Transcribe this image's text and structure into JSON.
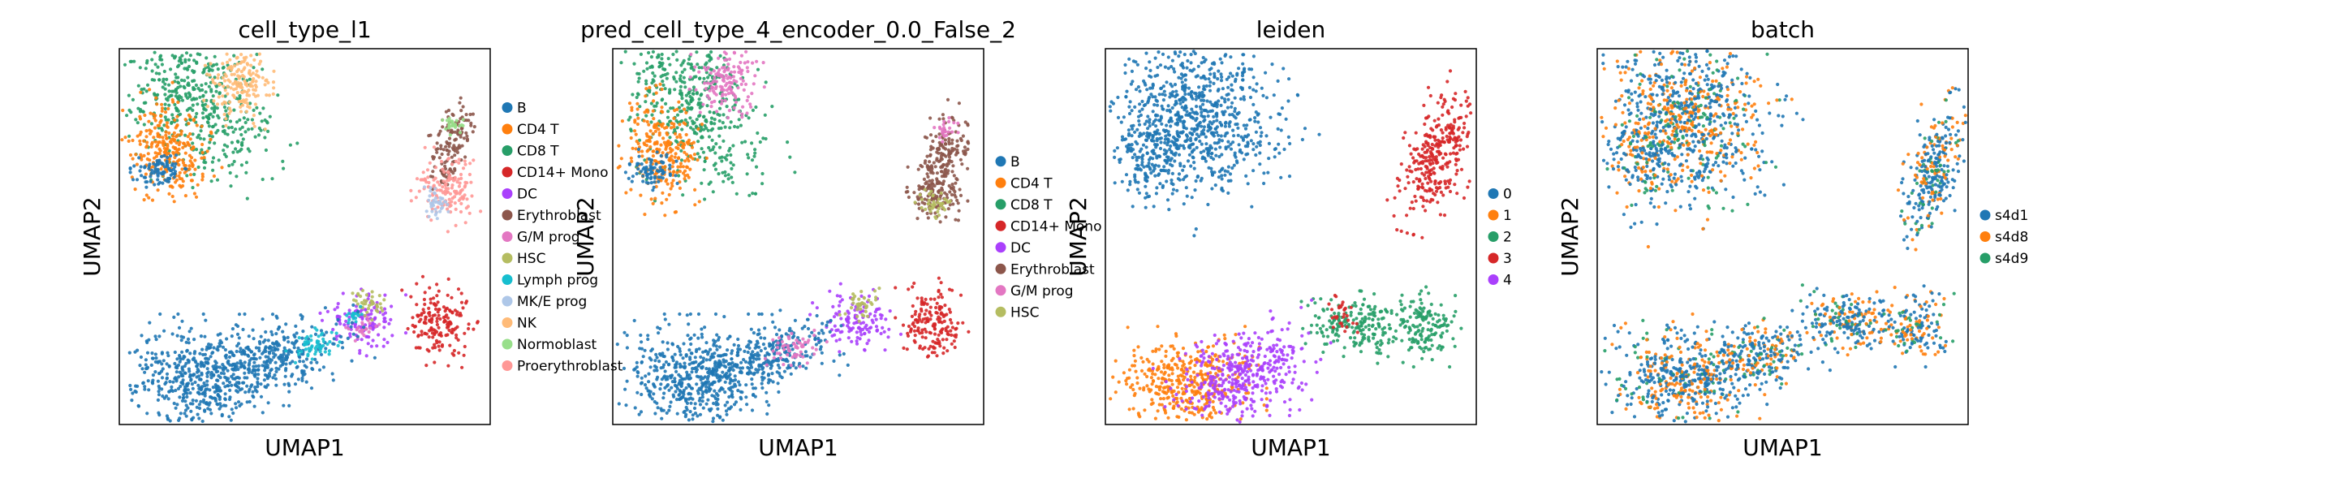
{
  "colors": {
    "B": "#1f77b4",
    "CD4 T": "#ff7f0e",
    "CD8 T": "#279e68",
    "CD14+ Mono": "#d62728",
    "DC": "#aa40fc",
    "Erythroblast": "#8c564b",
    "G/M prog": "#e377c2",
    "HSC": "#b5bd61",
    "Lymph prog": "#17becf",
    "MK/E prog": "#aec7e8",
    "NK": "#ffbb78",
    "Normoblast": "#98df8a",
    "Proerythroblast": "#ff9896"
  },
  "chart_data": [
    {
      "type": "scatter",
      "title": "cell_type_l1",
      "xlabel": "UMAP1",
      "ylabel": "UMAP2",
      "grid": false,
      "ticks": false,
      "legend_position": "right",
      "legend": [
        "B",
        "CD4 T",
        "CD8 T",
        "CD14+ Mono",
        "DC",
        "Erythroblast",
        "G/M prog",
        "HSC",
        "Lymph prog",
        "MK/E prog",
        "NK",
        "Normoblast",
        "Proerythroblast"
      ],
      "legend_colors": [
        "#1f77b4",
        "#ff7f0e",
        "#279e68",
        "#d62728",
        "#aa40fc",
        "#8c564b",
        "#e377c2",
        "#b5bd61",
        "#17becf",
        "#aec7e8",
        "#ffbb78",
        "#98df8a",
        "#ff9896"
      ]
    },
    {
      "type": "scatter",
      "title": "pred_cell_type_4_encoder_0.0_False_2",
      "xlabel": "UMAP1",
      "ylabel": "UMAP2",
      "grid": false,
      "ticks": false,
      "legend_position": "right",
      "legend": [
        "B",
        "CD4 T",
        "CD8 T",
        "CD14+ Mono",
        "DC",
        "Erythroblast",
        "G/M prog",
        "HSC"
      ],
      "legend_colors": [
        "#1f77b4",
        "#ff7f0e",
        "#279e68",
        "#d62728",
        "#aa40fc",
        "#8c564b",
        "#e377c2",
        "#b5bd61"
      ]
    },
    {
      "type": "scatter",
      "title": "leiden",
      "xlabel": "UMAP1",
      "ylabel": "UMAP2",
      "grid": false,
      "ticks": false,
      "legend_position": "right",
      "legend": [
        "0",
        "1",
        "2",
        "3",
        "4"
      ],
      "legend_colors": [
        "#1f77b4",
        "#ff7f0e",
        "#279e68",
        "#d62728",
        "#aa40fc"
      ]
    },
    {
      "type": "scatter",
      "title": "batch",
      "xlabel": "UMAP1",
      "ylabel": "UMAP2",
      "grid": false,
      "ticks": false,
      "legend_position": "right",
      "legend": [
        "s4d1",
        "s4d8",
        "s4d9"
      ],
      "legend_colors": [
        "#1f77b4",
        "#ff7f0e",
        "#279e68"
      ]
    }
  ]
}
